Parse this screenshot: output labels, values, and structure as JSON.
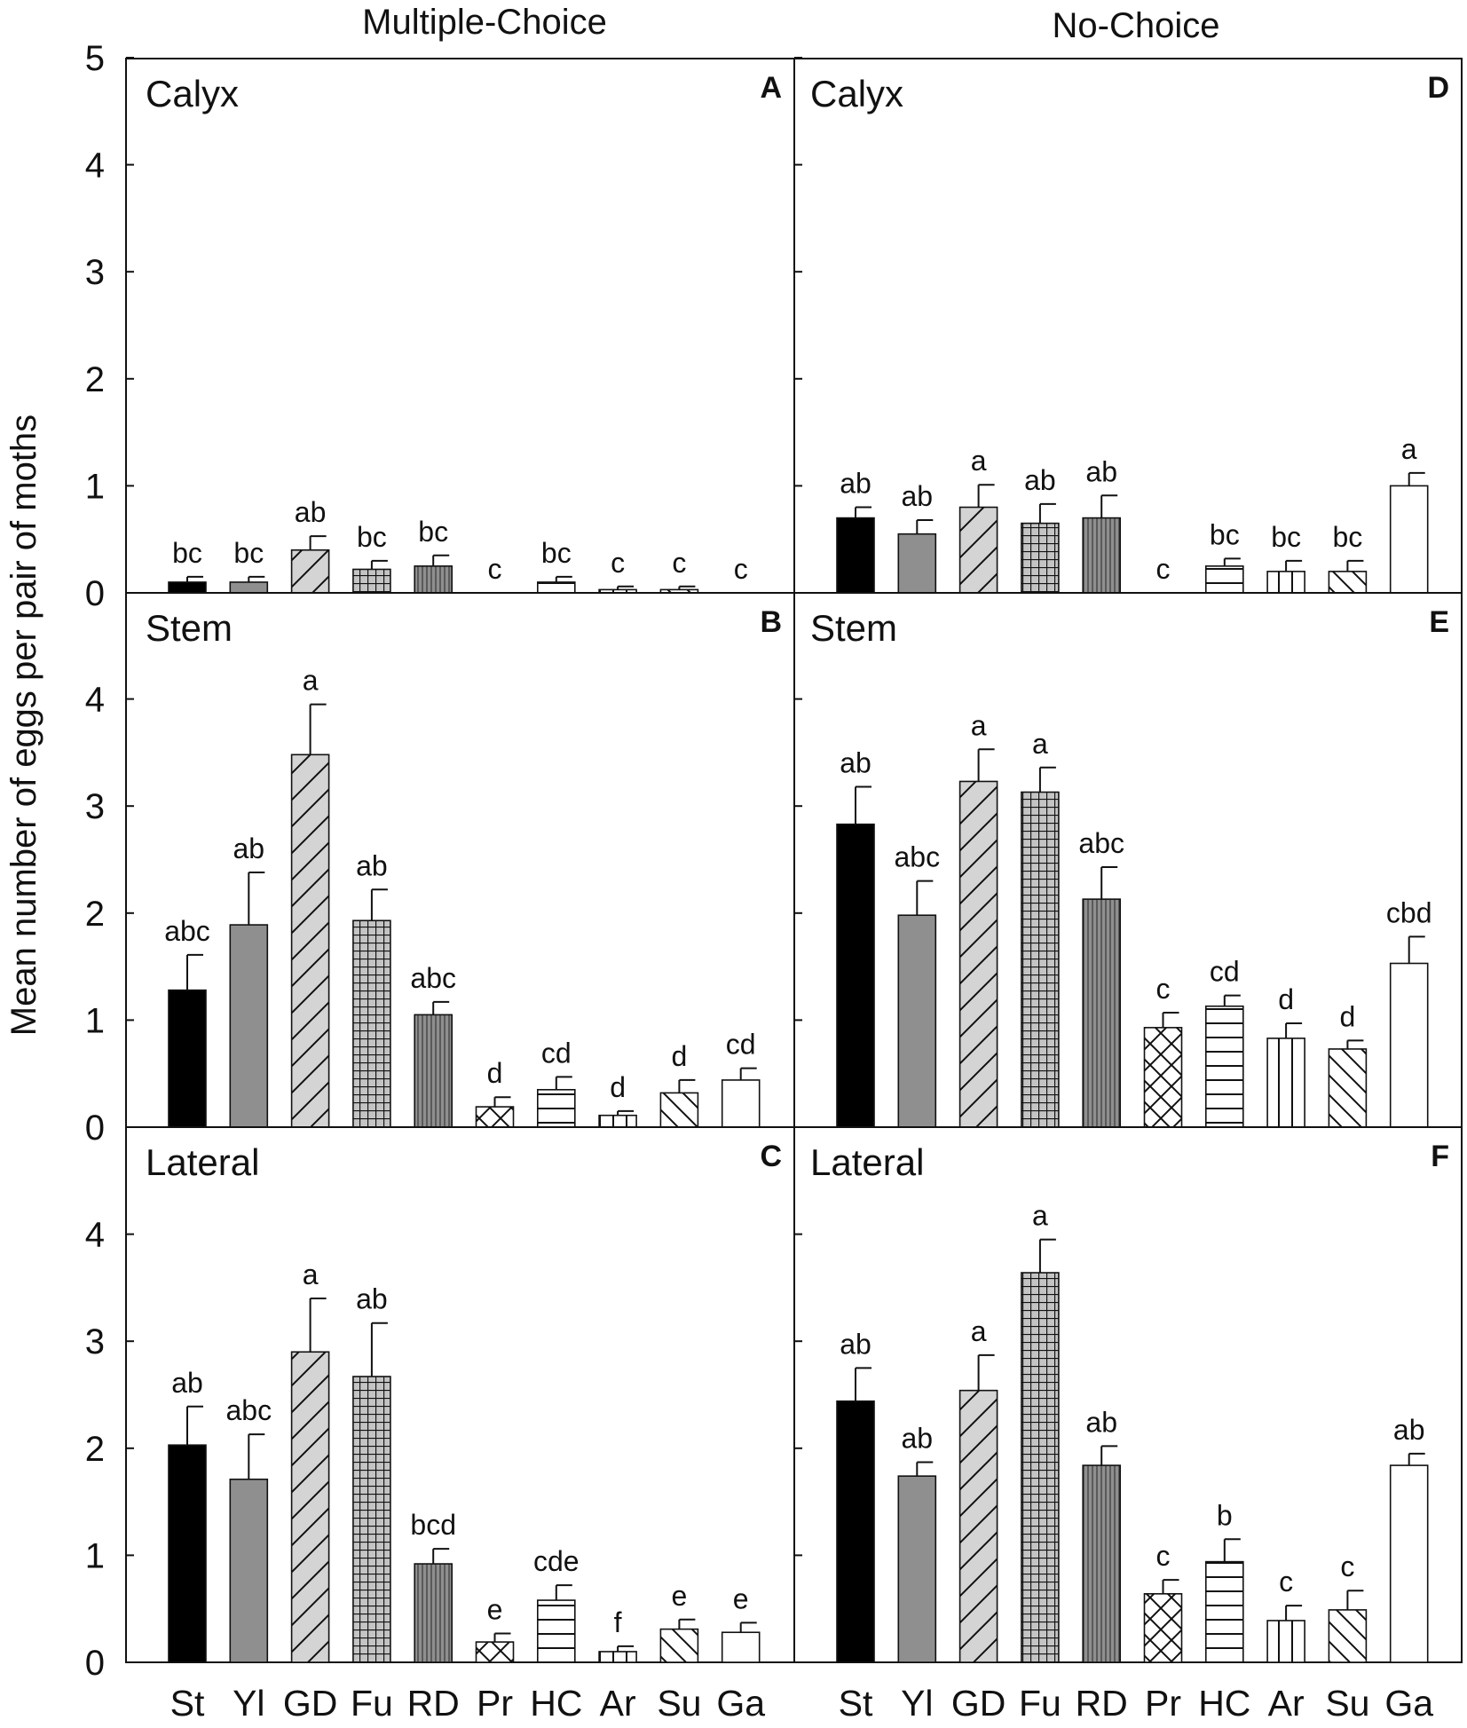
{
  "chart_data": {
    "type": "bar",
    "ylabel": "Mean number of eggs per pair of moths",
    "ylim": [
      0,
      5
    ],
    "yticks": [
      0,
      1,
      2,
      3,
      4,
      5
    ],
    "categories": [
      "St",
      "Yl",
      "GD",
      "Fu",
      "RD",
      "Pr",
      "HC",
      "Ar",
      "Su",
      "Ga"
    ],
    "category_patterns": [
      "solid-black",
      "solid-gray",
      "diagonal",
      "grid",
      "vertical-fine",
      "crosshatch",
      "horizontal",
      "vertical",
      "backslash",
      "white"
    ],
    "columns": [
      "Multiple-Choice",
      "No-Choice"
    ],
    "panels": [
      {
        "letter": "A",
        "column": "Multiple-Choice",
        "region": "Calyx",
        "values": [
          0.1,
          0.1,
          0.4,
          0.22,
          0.25,
          0,
          0.1,
          0.03,
          0.03,
          0
        ],
        "errors": [
          0.05,
          0.05,
          0.13,
          0.08,
          0.1,
          0,
          0.05,
          0.03,
          0.03,
          0
        ],
        "letters": [
          "bc",
          "bc",
          "ab",
          "bc",
          "bc",
          "c",
          "bc",
          "c",
          "c",
          "c"
        ]
      },
      {
        "letter": "B",
        "column": "Multiple-Choice",
        "region": "Stem",
        "values": [
          1.28,
          1.89,
          3.48,
          1.93,
          1.05,
          0.19,
          0.35,
          0.11,
          0.32,
          0.44
        ],
        "errors": [
          0.33,
          0.49,
          0.47,
          0.29,
          0.12,
          0.09,
          0.12,
          0.04,
          0.12,
          0.11
        ],
        "letters": [
          "abc",
          "ab",
          "a",
          "ab",
          "abc",
          "d",
          "cd",
          "d",
          "d",
          "cd"
        ]
      },
      {
        "letter": "C",
        "column": "Multiple-Choice",
        "region": "Lateral",
        "values": [
          2.03,
          1.71,
          2.9,
          2.67,
          0.92,
          0.19,
          0.58,
          0.1,
          0.31,
          0.28
        ],
        "errors": [
          0.36,
          0.42,
          0.5,
          0.5,
          0.14,
          0.08,
          0.14,
          0.05,
          0.09,
          0.09
        ],
        "letters": [
          "ab",
          "abc",
          "a",
          "ab",
          "bcd",
          "e",
          "cde",
          "f",
          "e",
          "e"
        ]
      },
      {
        "letter": "D",
        "column": "No-Choice",
        "region": "Calyx",
        "values": [
          0.7,
          0.55,
          0.8,
          0.65,
          0.7,
          0,
          0.25,
          0.2,
          0.2,
          1.0
        ],
        "errors": [
          0.1,
          0.13,
          0.21,
          0.18,
          0.21,
          0,
          0.07,
          0.1,
          0.1,
          0.12
        ],
        "letters": [
          "ab",
          "ab",
          "a",
          "ab",
          "ab",
          "c",
          "bc",
          "bc",
          "bc",
          "a"
        ]
      },
      {
        "letter": "E",
        "column": "No-Choice",
        "region": "Stem",
        "values": [
          2.83,
          1.98,
          3.23,
          3.13,
          2.13,
          0.93,
          1.13,
          0.83,
          0.73,
          1.53
        ],
        "errors": [
          0.35,
          0.32,
          0.3,
          0.23,
          0.3,
          0.14,
          0.1,
          0.14,
          0.08,
          0.25
        ],
        "letters": [
          "ab",
          "abc",
          "a",
          "a",
          "abc",
          "c",
          "cd",
          "d",
          "d",
          "cbd"
        ]
      },
      {
        "letter": "F",
        "column": "No-Choice",
        "region": "Lateral",
        "values": [
          2.44,
          1.74,
          2.54,
          3.64,
          1.84,
          0.64,
          0.94,
          0.39,
          0.49,
          1.84
        ],
        "errors": [
          0.31,
          0.13,
          0.33,
          0.31,
          0.18,
          0.13,
          0.21,
          0.14,
          0.18,
          0.11
        ],
        "letters": [
          "ab",
          "ab",
          "a",
          "a",
          "ab",
          "c",
          "b",
          "c",
          "c",
          "ab"
        ]
      }
    ]
  }
}
